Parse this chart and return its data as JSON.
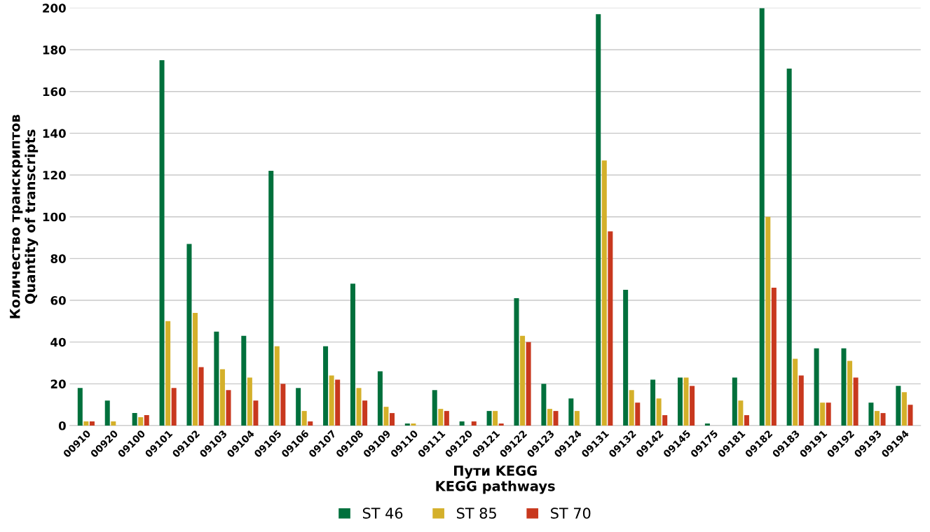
{
  "chart_data": {
    "type": "bar",
    "xlabel": "Пути KEGG\nKEGG pathways",
    "ylabel": "Количество транскриптов\nQuantity of transcripts",
    "categories": [
      "00910",
      "00920",
      "09100",
      "09101",
      "09102",
      "09103",
      "09104",
      "09105",
      "09106",
      "09107",
      "09108",
      "09109",
      "09110",
      "09111",
      "09120",
      "09121",
      "09122",
      "09123",
      "09124",
      "09131",
      "09132",
      "09142",
      "09145",
      "09175",
      "09181",
      "09182",
      "09183",
      "09191",
      "09192",
      "09193",
      "09194"
    ],
    "series": [
      {
        "name": "ST 46",
        "color": "#00703c",
        "values": [
          18,
          12,
          6,
          175,
          87,
          45,
          43,
          122,
          18,
          38,
          68,
          26,
          1,
          17,
          2,
          7,
          61,
          20,
          13,
          197,
          65,
          22,
          23,
          1,
          23,
          200,
          171,
          37,
          37,
          11,
          19
        ]
      },
      {
        "name": "ST 85",
        "color": "#d4b02a",
        "values": [
          2,
          2,
          4,
          50,
          54,
          27,
          23,
          38,
          7,
          24,
          18,
          9,
          1,
          8,
          0,
          7,
          43,
          8,
          7,
          127,
          17,
          13,
          23,
          0,
          12,
          100,
          32,
          11,
          31,
          7,
          16
        ]
      },
      {
        "name": "ST 70",
        "color": "#c8381e",
        "values": [
          2,
          0,
          5,
          18,
          28,
          17,
          12,
          20,
          2,
          22,
          12,
          6,
          0,
          7,
          2,
          1,
          40,
          7,
          0,
          93,
          11,
          5,
          19,
          0,
          5,
          66,
          24,
          11,
          23,
          6,
          10
        ]
      }
    ],
    "ylim": [
      0,
      200
    ],
    "yticks": [
      0,
      20,
      40,
      60,
      80,
      100,
      120,
      140,
      160,
      180,
      200
    ],
    "grid": "y",
    "legend": "bottom"
  }
}
